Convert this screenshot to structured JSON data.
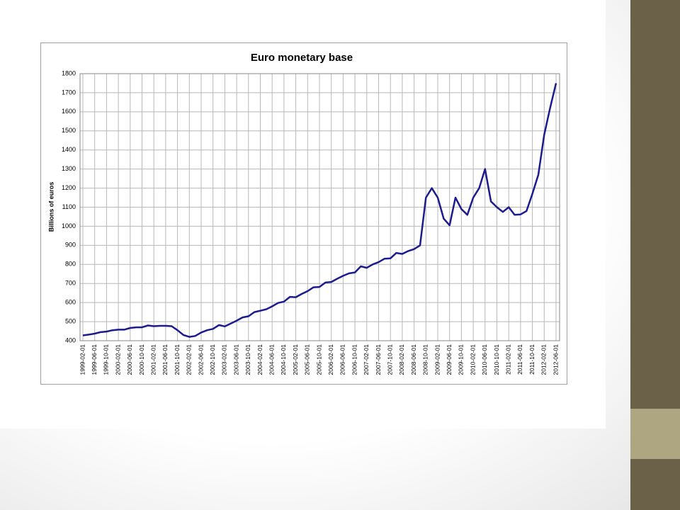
{
  "chart_data": {
    "type": "line",
    "title": "Euro monetary base",
    "y_label": "Billions of euros",
    "color": "#1c1c8f",
    "categories": [
      "1999-02-01",
      null,
      "1999-06-01",
      null,
      "1999-10-01",
      null,
      "2000-02-01",
      null,
      "2000-06-01",
      null,
      "2000-10-01",
      null,
      "2001-02-01",
      null,
      "2001-06-01",
      null,
      "2001-10-01",
      null,
      "2002-02-01",
      null,
      "2002-06-01",
      null,
      "2002-10-01",
      null,
      "2003-02-01",
      null,
      "2003-06-01",
      null,
      "2003-10-01",
      null,
      "2004-02-01",
      null,
      "2004-06-01",
      null,
      "2004-10-01",
      null,
      "2005-02-01",
      null,
      "2005-06-01",
      null,
      "2005-10-01",
      null,
      "2006-02-01",
      null,
      "2006-06-01",
      null,
      "2006-10-01",
      null,
      "2007-02-01",
      null,
      "2007-06-01",
      null,
      "2007-10-01",
      null,
      "2008-02-01",
      null,
      "2008-06-01",
      null,
      "2008-10-01",
      null,
      "2009-02-01",
      null,
      "2009-06-01",
      null,
      "2009-10-01",
      null,
      "2010-02-01",
      null,
      "2010-06-01",
      null,
      "2010-10-01",
      null,
      "2011-02-01",
      null,
      "2011-06-01",
      null,
      "2011-10-01",
      null,
      "2012-02-01",
      null,
      "2012-06-01"
    ],
    "values": [
      428,
      432,
      437,
      445,
      448,
      455,
      458,
      458,
      467,
      470,
      470,
      480,
      476,
      478,
      478,
      476,
      455,
      430,
      420,
      425,
      443,
      455,
      462,
      482,
      475,
      490,
      505,
      522,
      528,
      550,
      557,
      565,
      580,
      598,
      605,
      630,
      628,
      645,
      660,
      680,
      682,
      705,
      708,
      725,
      740,
      753,
      758,
      790,
      782,
      800,
      812,
      830,
      832,
      860,
      855,
      870,
      880,
      900,
      1150,
      1200,
      1150,
      1040,
      1005,
      1150,
      1090,
      1060,
      1150,
      1200,
      1300,
      1130,
      1100,
      1075,
      1100,
      1060,
      1062,
      1080,
      1170,
      1270,
      1480,
      1620,
      1750
    ],
    "ylim": [
      400,
      1800
    ],
    "yticks": [
      400,
      500,
      600,
      700,
      800,
      900,
      1000,
      1100,
      1200,
      1300,
      1400,
      1500,
      1600,
      1700,
      1800
    ],
    "grid": true
  }
}
